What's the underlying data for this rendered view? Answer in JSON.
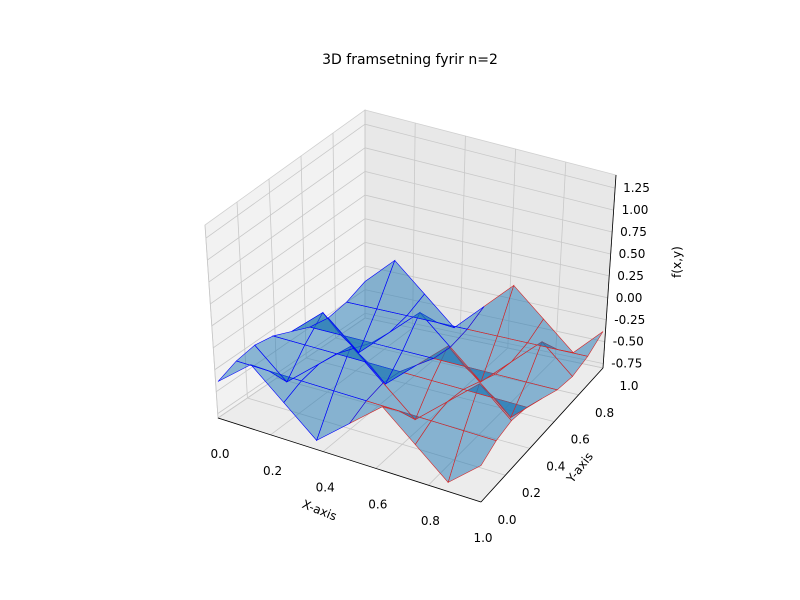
{
  "chart_data": {
    "type": "surface3d",
    "title": "3D framsetning fyrir n=2",
    "xlabel": "X-axis",
    "ylabel": "Y-axis",
    "zlabel": "f(x,y)",
    "xlim": [
      0,
      1
    ],
    "ylim": [
      0,
      1
    ],
    "zlim": [
      -0.8,
      1.4
    ],
    "x_ticks": [
      "0.0",
      "0.2",
      "0.4",
      "0.6",
      "0.8",
      "1.0"
    ],
    "y_ticks": [
      "0.0",
      "0.2",
      "0.4",
      "0.6",
      "0.8",
      "1.0"
    ],
    "z_ticks": [
      "-0.75",
      "-0.50",
      "-0.25",
      "0.00",
      "0.25",
      "0.50",
      "0.75",
      "1.00",
      "1.25"
    ],
    "grid": true,
    "colors": {
      "surface_fill": "#1f77b4",
      "edge_left": "#0000ff",
      "edge_right": "#d62728",
      "pane": "#f2f2f2",
      "grid": "#c8c8c8"
    }
  }
}
